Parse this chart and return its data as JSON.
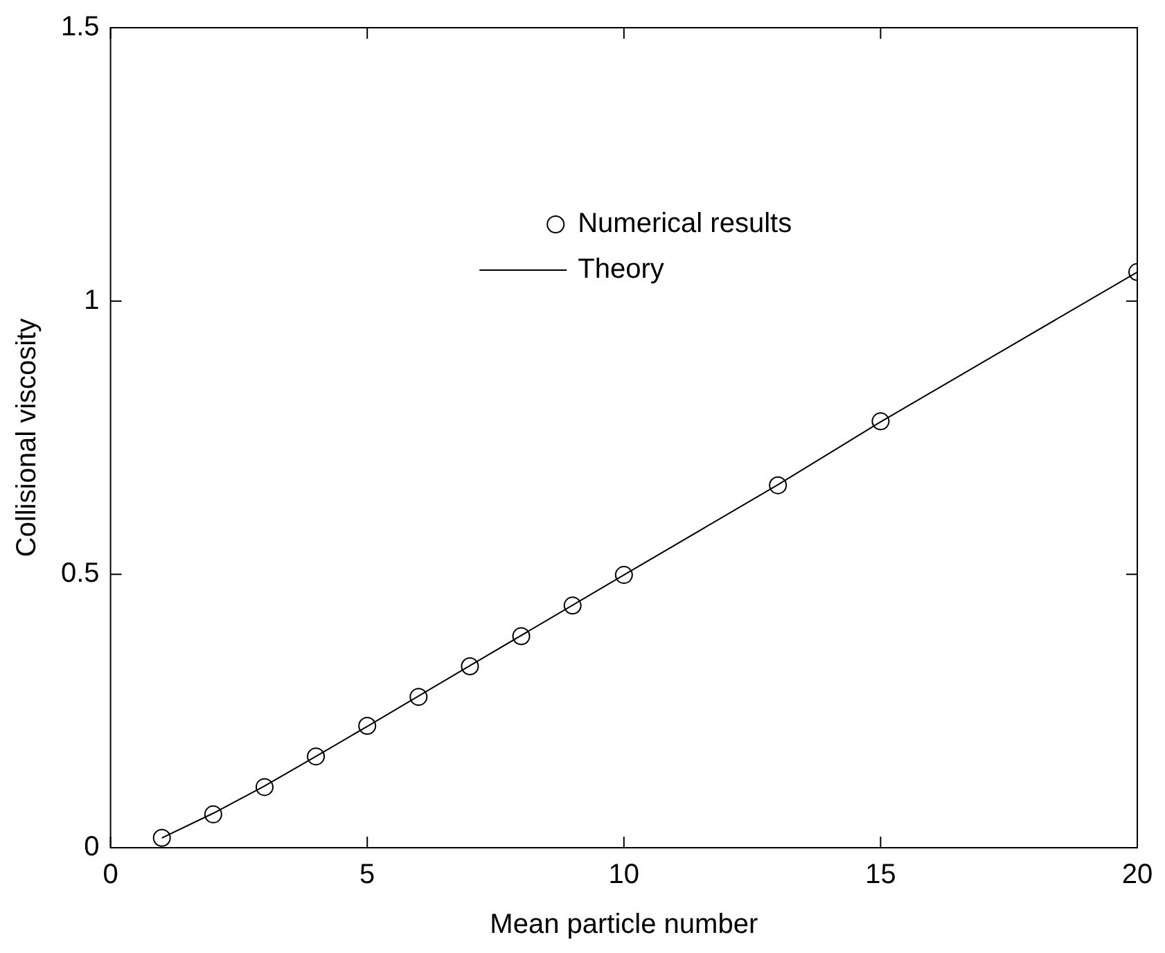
{
  "chart_data": {
    "type": "scatter",
    "xlabel": "Mean particle number",
    "ylabel": "Collisional viscosity",
    "xlim": [
      0,
      20
    ],
    "ylim": [
      0,
      1.5
    ],
    "xticks": [
      0,
      5,
      10,
      15,
      20
    ],
    "yticks": [
      0,
      0.5,
      1,
      1.5
    ],
    "grid": false,
    "legend": "top",
    "series": [
      {
        "name": "Numerical results",
        "type": "scatter",
        "marker": "circle",
        "color": "#000000",
        "x": [
          1,
          2,
          3,
          4,
          5,
          6,
          7,
          8,
          9,
          10,
          13,
          15,
          20
        ],
        "values": [
          0.018,
          0.061,
          0.111,
          0.167,
          0.223,
          0.276,
          0.332,
          0.387,
          0.443,
          0.499,
          0.663,
          0.78,
          1.053
        ]
      },
      {
        "name": "Theory",
        "type": "line",
        "marker": "none",
        "line_style": "solid",
        "color": "#000000",
        "x": [
          1,
          2,
          3,
          4,
          5,
          7,
          10,
          13,
          15,
          20
        ],
        "values": [
          0.018,
          0.063,
          0.113,
          0.167,
          0.222,
          0.333,
          0.499,
          0.664,
          0.779,
          1.053
        ]
      }
    ]
  }
}
